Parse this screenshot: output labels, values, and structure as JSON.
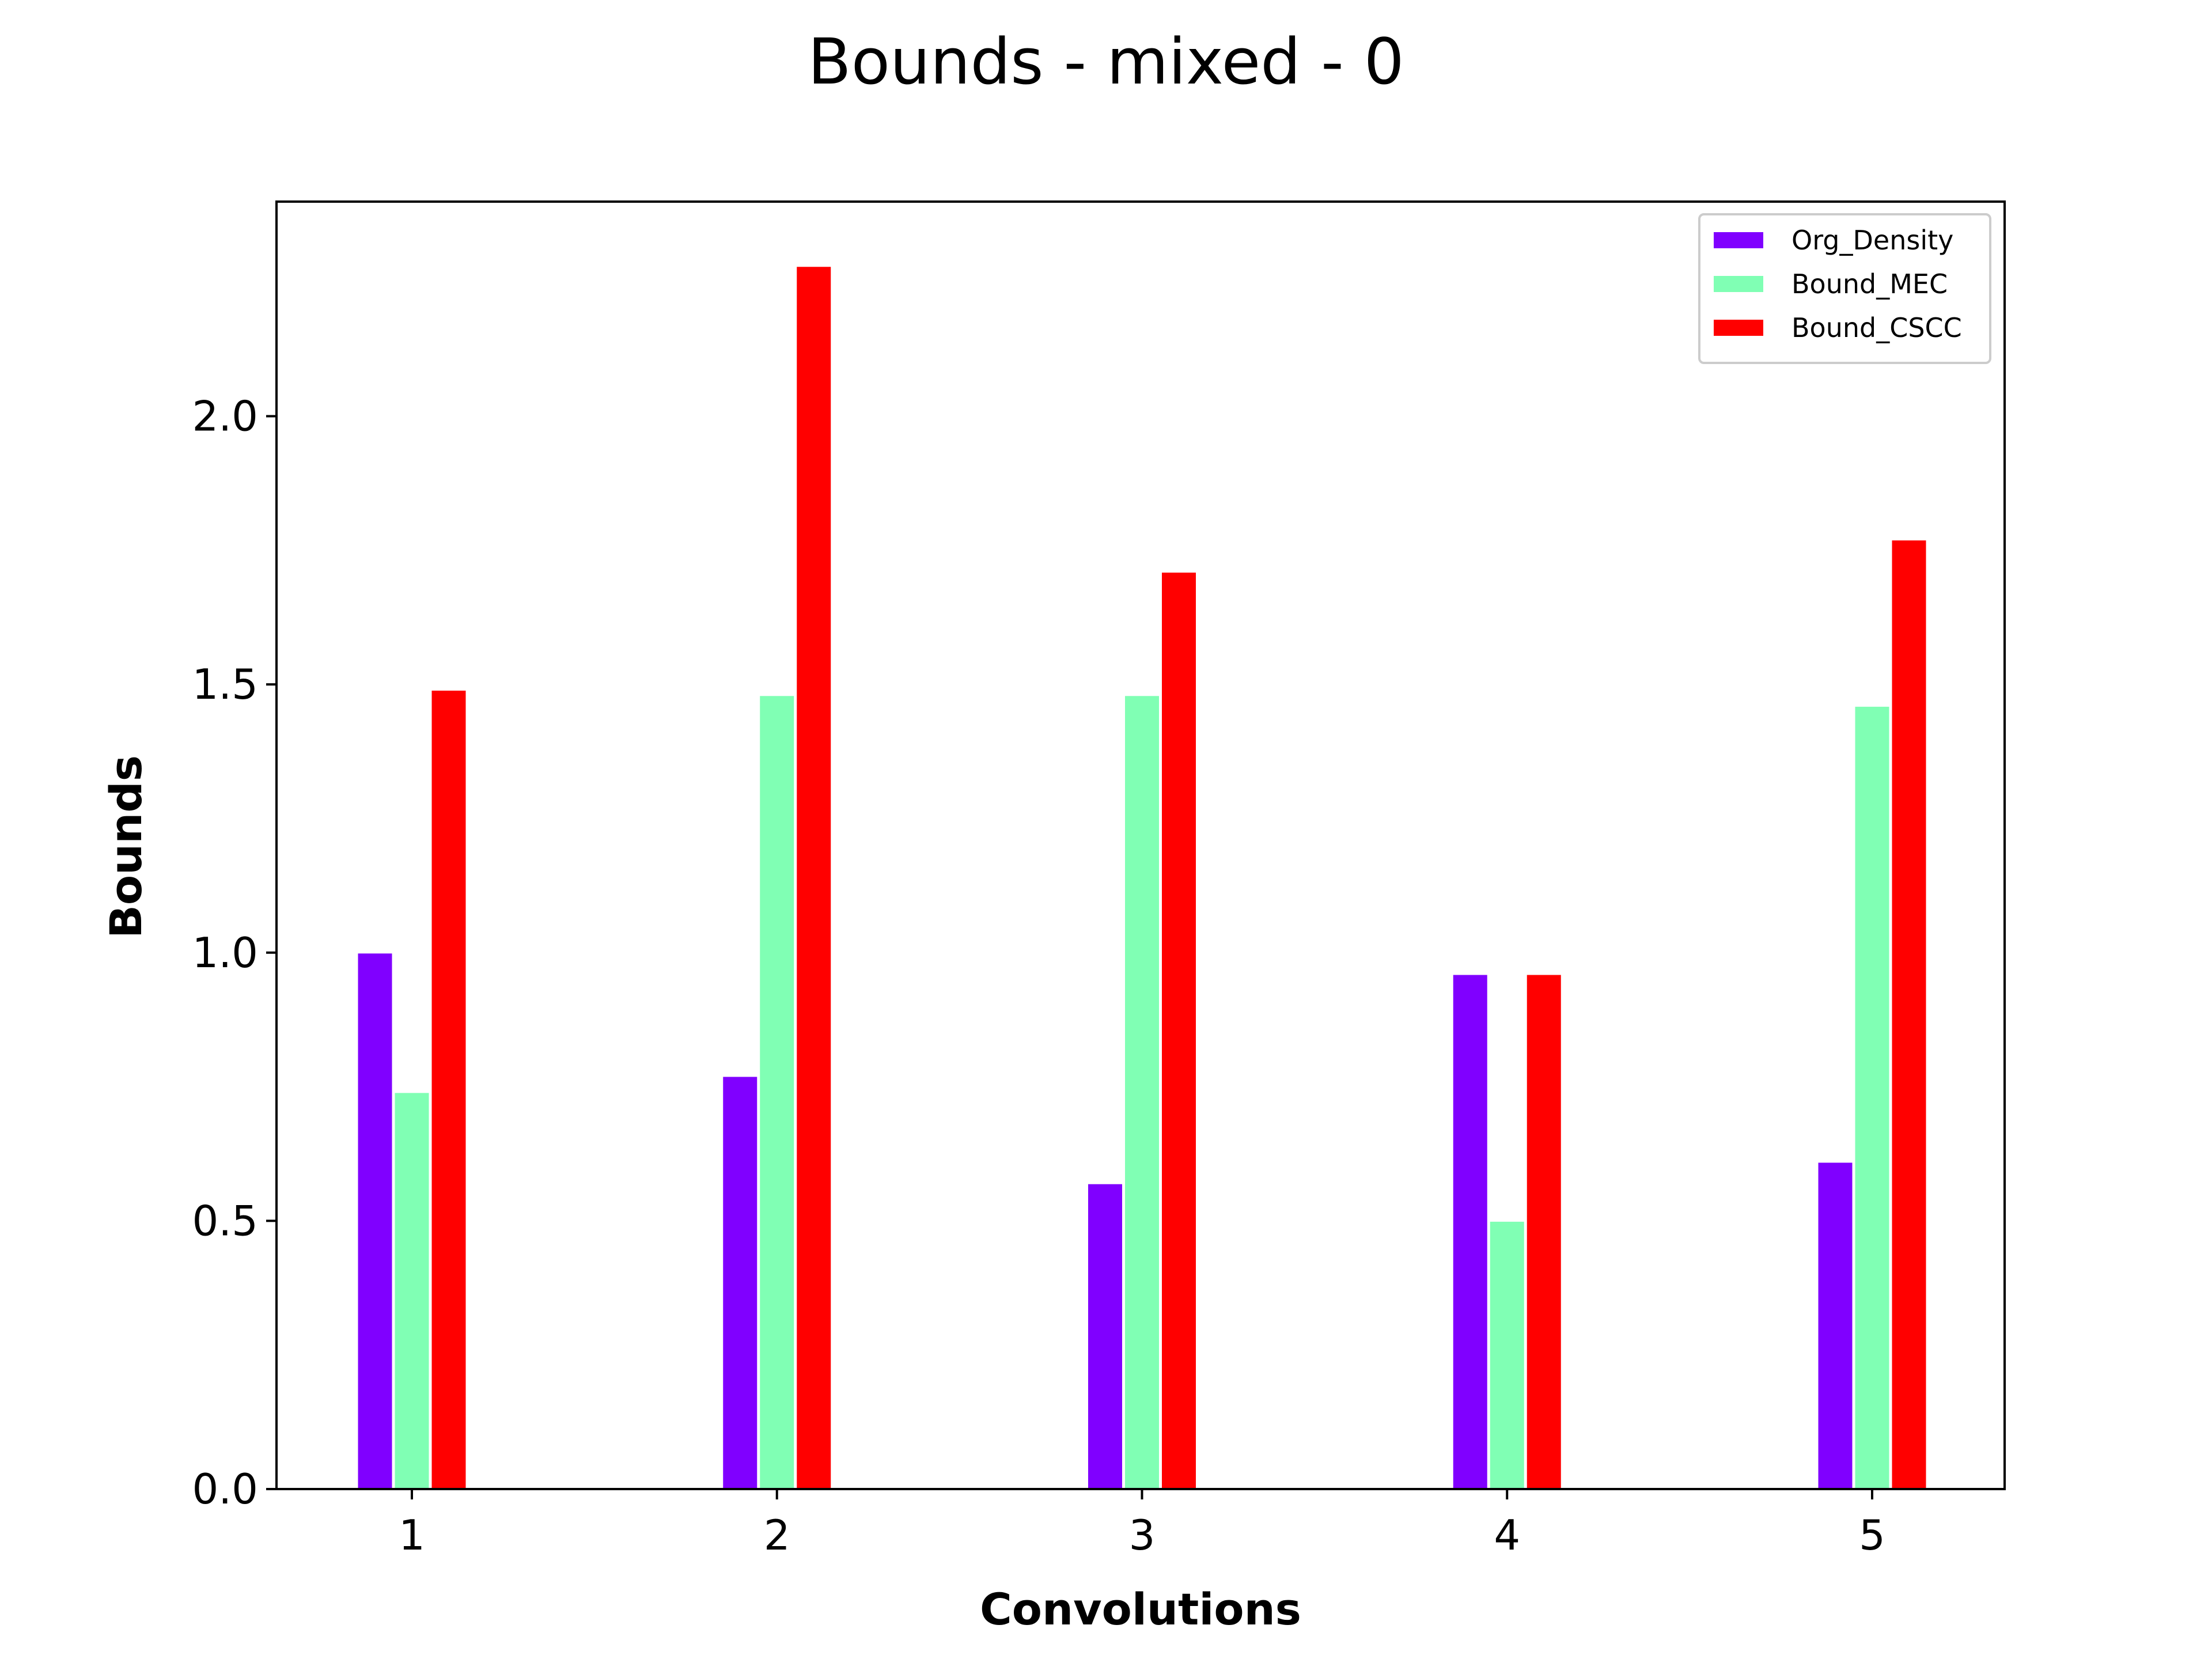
{
  "chart_data": {
    "type": "bar",
    "title": "Bounds - mixed - 0",
    "xlabel": "Convolutions",
    "ylabel": "Bounds",
    "categories": [
      "1",
      "2",
      "3",
      "4",
      "5"
    ],
    "ylim": [
      0,
      2.4
    ],
    "yticks": [
      "0.0",
      "0.5",
      "1.0",
      "1.5",
      "2.0"
    ],
    "grid": false,
    "legend_position": "top-right",
    "series": [
      {
        "name": "Org_Density",
        "color": "#8000ff",
        "values": [
          1.0,
          0.77,
          0.57,
          0.96,
          0.61
        ]
      },
      {
        "name": "Bound_MEC",
        "color": "#80ffb4",
        "values": [
          0.74,
          1.48,
          1.48,
          0.5,
          1.46
        ]
      },
      {
        "name": "Bound_CSCC",
        "color": "#ff0000",
        "values": [
          1.49,
          2.28,
          1.71,
          0.96,
          1.77
        ]
      }
    ]
  }
}
